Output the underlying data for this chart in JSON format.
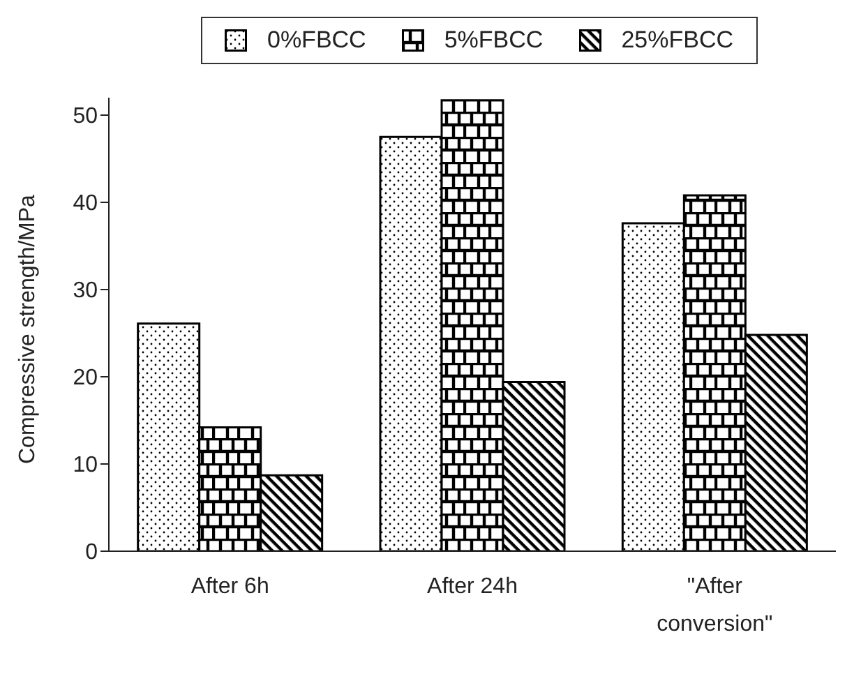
{
  "chart_data": {
    "type": "bar",
    "ylabel": "Compressive strength/MPa",
    "categories": [
      "After 6h",
      "After 24h",
      "\"After conversion\""
    ],
    "series": [
      {
        "name": "0%FBCC",
        "color": "#000000",
        "values": [
          26.1,
          47.5,
          37.6
        ]
      },
      {
        "name": "5%FBCC",
        "color": "#000000",
        "values": [
          14.2,
          51.7,
          40.8
        ]
      },
      {
        "name": "25%FBCC",
        "color": "#000000",
        "values": [
          8.7,
          19.4,
          24.8
        ]
      }
    ],
    "ylim": [
      0,
      52
    ],
    "yticks": [
      0,
      10,
      20,
      30,
      40,
      50
    ],
    "grid": false,
    "legend": "top"
  }
}
